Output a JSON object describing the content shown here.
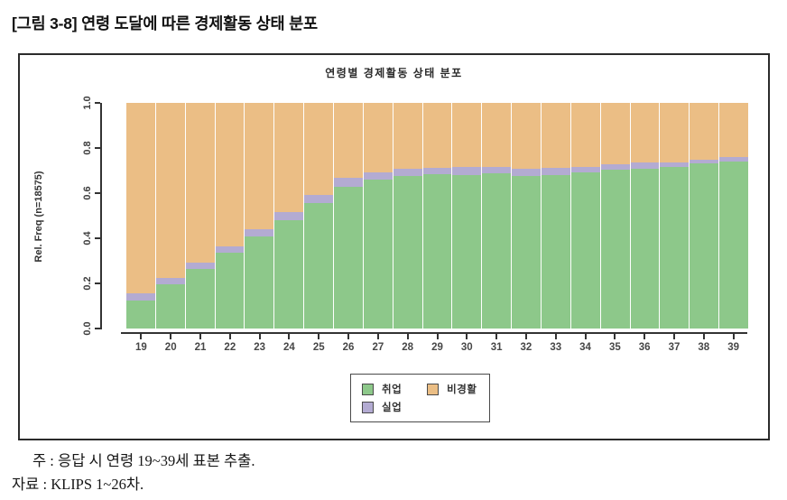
{
  "page": {
    "caption": "[그림 3-8] 연령 도달에 따른 경제활동 상태 분포",
    "note": "주 : 응답 시 연령 19~39세 표본 추출.",
    "source": "자료 : KLIPS 1~26차."
  },
  "chart_data": {
    "type": "stacked-bar",
    "title": "연령별 경제활동 상태 분포",
    "ylabel": "Rel. Freq (n=18575)",
    "xlabel": "",
    "ylim": [
      0,
      1
    ],
    "yticks": [
      "0.0",
      "0.2",
      "0.4",
      "0.6",
      "0.8",
      "1.0"
    ],
    "grid": false,
    "categories": [
      "19",
      "20",
      "21",
      "22",
      "23",
      "24",
      "25",
      "26",
      "27",
      "28",
      "29",
      "30",
      "31",
      "32",
      "33",
      "34",
      "35",
      "36",
      "37",
      "38",
      "39"
    ],
    "series": [
      {
        "name": "취업",
        "color": "#8DC88A",
        "values": [
          0.125,
          0.195,
          0.265,
          0.337,
          0.408,
          0.482,
          0.558,
          0.627,
          0.66,
          0.677,
          0.684,
          0.68,
          0.687,
          0.677,
          0.681,
          0.692,
          0.703,
          0.71,
          0.717,
          0.733,
          0.741
        ]
      },
      {
        "name": "실업",
        "color": "#B3ABD2",
        "values": [
          0.03,
          0.03,
          0.027,
          0.027,
          0.032,
          0.036,
          0.036,
          0.04,
          0.033,
          0.033,
          0.028,
          0.035,
          0.03,
          0.031,
          0.032,
          0.023,
          0.024,
          0.027,
          0.02,
          0.017,
          0.019
        ]
      },
      {
        "name": "비경활",
        "color": "#EBBE85",
        "values": [
          0.845,
          0.775,
          0.708,
          0.636,
          0.56,
          0.482,
          0.406,
          0.333,
          0.307,
          0.29,
          0.288,
          0.285,
          0.283,
          0.292,
          0.287,
          0.285,
          0.273,
          0.263,
          0.263,
          0.25,
          0.24
        ]
      }
    ],
    "legend": {
      "position": "bottom-center",
      "entries": [
        "취업",
        "실업",
        "비경활"
      ]
    }
  }
}
